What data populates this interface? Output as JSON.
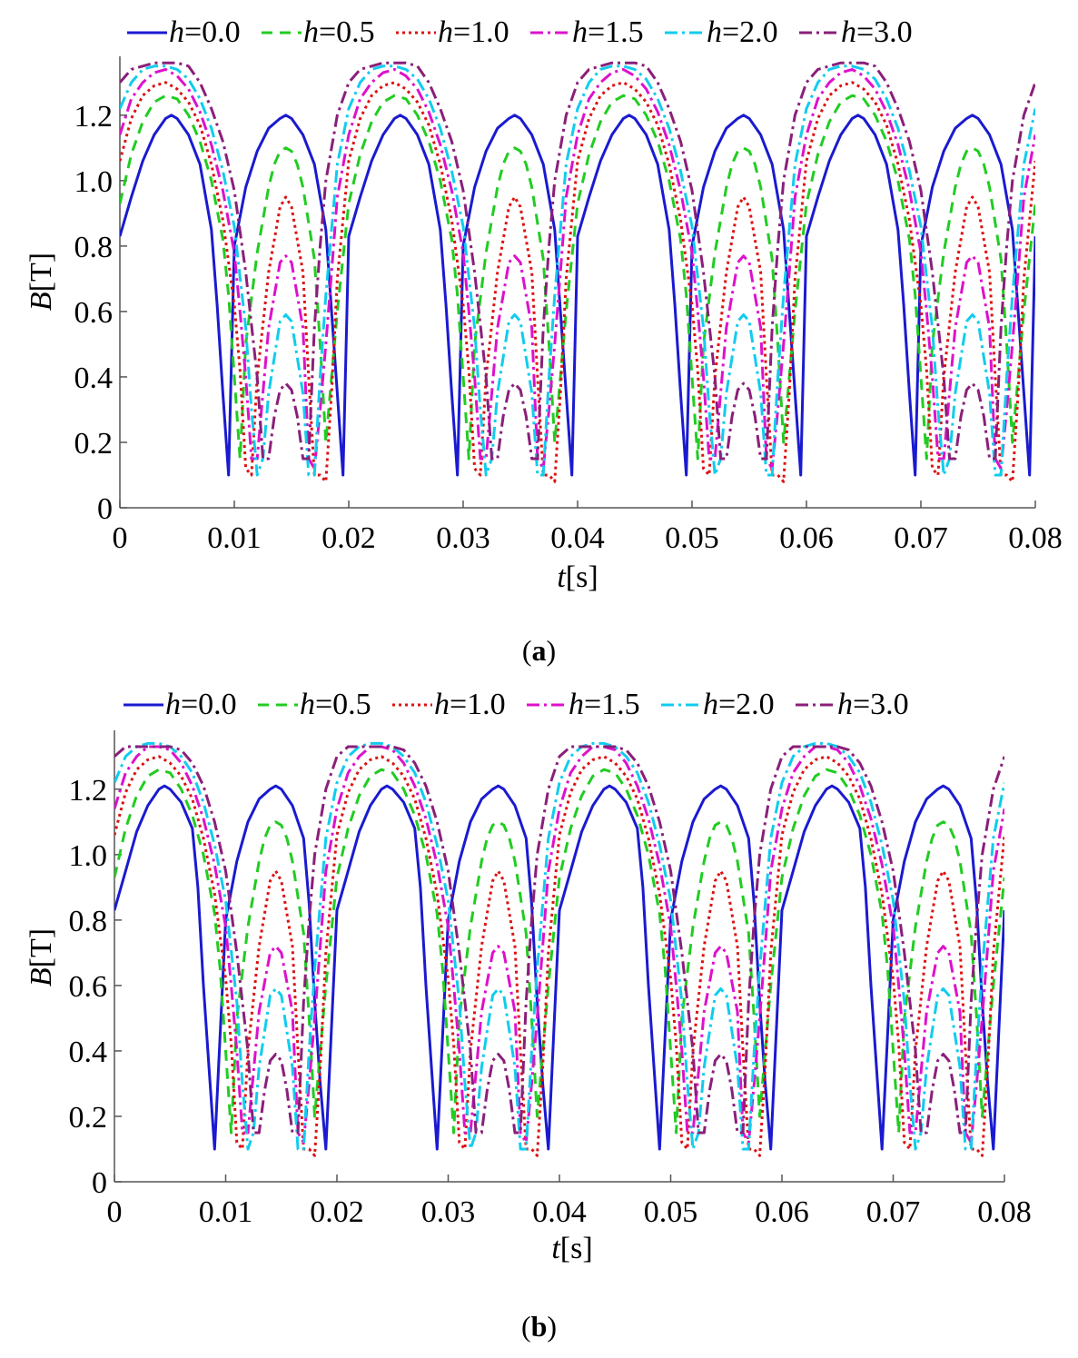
{
  "chart_data": [
    {
      "panel_id": "a",
      "type": "line",
      "caption": "a",
      "xlabel_var": "t",
      "xlabel_unit": "[s]",
      "ylabel_var": "B",
      "ylabel_unit": "[T]",
      "xlim": [
        0,
        0.08
      ],
      "ylim": [
        0,
        1.38
      ],
      "xticks": [
        {
          "value": 0,
          "label": "0"
        },
        {
          "value": 0.01,
          "label": "0.01"
        },
        {
          "value": 0.02,
          "label": "0.02"
        },
        {
          "value": 0.03,
          "label": "0.03"
        },
        {
          "value": 0.04,
          "label": "0.04"
        },
        {
          "value": 0.05,
          "label": "0.05"
        },
        {
          "value": 0.06,
          "label": "0.06"
        },
        {
          "value": 0.07,
          "label": "0.07"
        },
        {
          "value": 0.08,
          "label": "0.08"
        }
      ],
      "yticks": [
        {
          "value": 0,
          "label": "0"
        },
        {
          "value": 0.2,
          "label": "0.2"
        },
        {
          "value": 0.4,
          "label": "0.4"
        },
        {
          "value": 0.6,
          "label": "0.6"
        },
        {
          "value": 0.8,
          "label": "0.8"
        },
        {
          "value": 1.0,
          "label": "1.0"
        },
        {
          "value": 1.2,
          "label": "1.2"
        }
      ],
      "series": [
        {
          "name": "h=0.0",
          "var": "h",
          "value_label": "=0.0",
          "color": "#1a1ad0",
          "dash": "",
          "width": 3,
          "x": [
            0.0,
            0.001,
            0.002,
            0.003,
            0.004,
            0.0045,
            0.005,
            0.006,
            0.007,
            0.008,
            0.0085,
            0.009,
            0.0095,
            0.01,
            0.011,
            0.012,
            0.013,
            0.014,
            0.0145,
            0.015,
            0.016,
            0.017,
            0.018,
            0.0185,
            0.019,
            0.0195,
            0.02
          ],
          "y": [
            0.83,
            0.95,
            1.06,
            1.14,
            1.19,
            1.2,
            1.19,
            1.14,
            1.05,
            0.85,
            0.62,
            0.35,
            0.1,
            0.8,
            0.98,
            1.09,
            1.16,
            1.19,
            1.2,
            1.19,
            1.14,
            1.05,
            0.85,
            0.6,
            0.35,
            0.1,
            0.83
          ]
        },
        {
          "name": "h=0.5",
          "var": "h",
          "value_label": "=0.5",
          "color": "#22cc22",
          "dash": "12,8",
          "width": 3,
          "x": [
            0.0,
            0.001,
            0.002,
            0.003,
            0.004,
            0.005,
            0.006,
            0.007,
            0.008,
            0.009,
            0.0095,
            0.01,
            0.0105,
            0.011,
            0.012,
            0.013,
            0.0135,
            0.014,
            0.0145,
            0.015,
            0.0155,
            0.016,
            0.017,
            0.0175,
            0.018,
            0.019,
            0.02
          ],
          "y": [
            0.93,
            1.08,
            1.18,
            1.24,
            1.26,
            1.25,
            1.2,
            1.12,
            1.0,
            0.82,
            0.65,
            0.4,
            0.15,
            0.5,
            0.78,
            0.98,
            1.05,
            1.09,
            1.1,
            1.09,
            1.05,
            0.98,
            0.76,
            0.5,
            0.2,
            0.6,
            0.93
          ]
        },
        {
          "name": "h=1.0",
          "var": "h",
          "value_label": "=1.0",
          "color": "#dd1111",
          "dash": "3,4",
          "width": 3,
          "x": [
            0.0,
            0.001,
            0.002,
            0.003,
            0.004,
            0.005,
            0.006,
            0.007,
            0.008,
            0.009,
            0.01,
            0.0105,
            0.011,
            0.0115,
            0.012,
            0.013,
            0.014,
            0.0145,
            0.015,
            0.016,
            0.0165,
            0.017,
            0.0175,
            0.018,
            0.0185,
            0.019,
            0.02
          ],
          "y": [
            1.06,
            1.19,
            1.26,
            1.29,
            1.3,
            1.28,
            1.24,
            1.17,
            1.05,
            0.88,
            0.62,
            0.42,
            0.12,
            0.1,
            0.4,
            0.72,
            0.92,
            0.95,
            0.92,
            0.72,
            0.4,
            0.1,
            0.1,
            0.08,
            0.35,
            0.7,
            1.06
          ]
        },
        {
          "name": "h=1.5",
          "var": "h",
          "value_label": "=1.5",
          "color": "#dd11cc",
          "dash": "14,5,3,5",
          "width": 3,
          "x": [
            0.0,
            0.001,
            0.002,
            0.003,
            0.004,
            0.005,
            0.006,
            0.007,
            0.008,
            0.009,
            0.01,
            0.0105,
            0.011,
            0.0115,
            0.012,
            0.013,
            0.014,
            0.0145,
            0.015,
            0.016,
            0.0165,
            0.017,
            0.0175,
            0.018,
            0.0185,
            0.019,
            0.02
          ],
          "y": [
            1.14,
            1.25,
            1.3,
            1.33,
            1.34,
            1.32,
            1.28,
            1.21,
            1.11,
            0.97,
            0.78,
            0.6,
            0.4,
            0.15,
            0.15,
            0.55,
            0.75,
            0.77,
            0.75,
            0.55,
            0.15,
            0.12,
            0.3,
            0.5,
            0.72,
            0.95,
            1.14
          ]
        },
        {
          "name": "h=2.0",
          "var": "h",
          "value_label": "=2.0",
          "color": "#11ccee",
          "dash": "14,5,3,5",
          "width": 3,
          "x": [
            0.0,
            0.001,
            0.002,
            0.003,
            0.004,
            0.005,
            0.006,
            0.007,
            0.008,
            0.009,
            0.01,
            0.011,
            0.0115,
            0.012,
            0.0125,
            0.013,
            0.014,
            0.0145,
            0.015,
            0.016,
            0.0165,
            0.017,
            0.0175,
            0.018,
            0.0185,
            0.019,
            0.02
          ],
          "y": [
            1.22,
            1.3,
            1.34,
            1.35,
            1.35,
            1.34,
            1.31,
            1.25,
            1.16,
            1.03,
            0.86,
            0.55,
            0.3,
            0.1,
            0.15,
            0.35,
            0.57,
            0.59,
            0.57,
            0.35,
            0.1,
            0.1,
            0.4,
            0.65,
            0.85,
            1.05,
            1.22
          ]
        },
        {
          "name": "h=3.0",
          "var": "h",
          "value_label": "=3.0",
          "color": "#8a1f7a",
          "dash": "14,5,3,5",
          "width": 3,
          "x": [
            0.0,
            0.001,
            0.002,
            0.003,
            0.004,
            0.005,
            0.006,
            0.007,
            0.008,
            0.009,
            0.01,
            0.011,
            0.012,
            0.0125,
            0.013,
            0.0135,
            0.014,
            0.0145,
            0.015,
            0.0155,
            0.016,
            0.0165,
            0.017,
            0.0175,
            0.018,
            0.019,
            0.02
          ],
          "y": [
            1.3,
            1.34,
            1.35,
            1.36,
            1.36,
            1.36,
            1.35,
            1.3,
            1.22,
            1.12,
            0.97,
            0.72,
            0.4,
            0.15,
            0.15,
            0.28,
            0.36,
            0.38,
            0.36,
            0.28,
            0.15,
            0.15,
            0.55,
            0.8,
            1.0,
            1.2,
            1.3
          ]
        }
      ]
    },
    {
      "panel_id": "b",
      "type": "line",
      "caption": "b",
      "xlabel_var": "t",
      "xlabel_unit": "[s]",
      "ylabel_var": "B",
      "ylabel_unit": "[T]",
      "xlim": [
        0,
        0.08
      ],
      "ylim": [
        0,
        1.38
      ],
      "xticks": [
        {
          "value": 0,
          "label": "0"
        },
        {
          "value": 0.01,
          "label": "0.01"
        },
        {
          "value": 0.02,
          "label": "0.02"
        },
        {
          "value": 0.03,
          "label": "0.03"
        },
        {
          "value": 0.04,
          "label": "0.04"
        },
        {
          "value": 0.05,
          "label": "0.05"
        },
        {
          "value": 0.06,
          "label": "0.06"
        },
        {
          "value": 0.07,
          "label": "0.07"
        },
        {
          "value": 0.08,
          "label": "0.08"
        }
      ],
      "yticks": [
        {
          "value": 0,
          "label": "0"
        },
        {
          "value": 0.2,
          "label": "0.2"
        },
        {
          "value": 0.4,
          "label": "0.4"
        },
        {
          "value": 0.6,
          "label": "0.6"
        },
        {
          "value": 0.8,
          "label": "0.8"
        },
        {
          "value": 1.0,
          "label": "1.0"
        },
        {
          "value": 1.2,
          "label": "1.2"
        }
      ],
      "series": [
        {
          "name": "h=0.0",
          "var": "h",
          "value_label": "=0.0",
          "color": "#1a1ad0",
          "dash": "",
          "width": 3,
          "x": [
            0.0,
            0.001,
            0.002,
            0.003,
            0.004,
            0.0045,
            0.005,
            0.006,
            0.007,
            0.0075,
            0.008,
            0.0085,
            0.009,
            0.01,
            0.011,
            0.012,
            0.013,
            0.014,
            0.0145,
            0.015,
            0.016,
            0.017,
            0.0175,
            0.018,
            0.0185,
            0.019,
            0.02
          ],
          "y": [
            0.83,
            0.95,
            1.07,
            1.15,
            1.2,
            1.21,
            1.2,
            1.16,
            1.08,
            0.9,
            0.6,
            0.35,
            0.1,
            0.8,
            0.98,
            1.1,
            1.17,
            1.2,
            1.21,
            1.2,
            1.15,
            1.05,
            0.85,
            0.55,
            0.3,
            0.1,
            0.83
          ]
        },
        {
          "name": "h=0.5",
          "var": "h",
          "value_label": "=0.5",
          "color": "#22cc22",
          "dash": "12,8",
          "width": 3,
          "x": [
            0.0,
            0.001,
            0.002,
            0.003,
            0.004,
            0.005,
            0.006,
            0.007,
            0.008,
            0.009,
            0.0095,
            0.01,
            0.0105,
            0.011,
            0.012,
            0.013,
            0.0135,
            0.014,
            0.0145,
            0.015,
            0.0155,
            0.016,
            0.017,
            0.0175,
            0.018,
            0.019,
            0.02
          ],
          "y": [
            0.93,
            1.08,
            1.18,
            1.24,
            1.26,
            1.25,
            1.2,
            1.12,
            1.0,
            0.82,
            0.65,
            0.4,
            0.15,
            0.5,
            0.78,
            0.98,
            1.05,
            1.09,
            1.1,
            1.09,
            1.05,
            0.98,
            0.76,
            0.5,
            0.2,
            0.6,
            0.93
          ]
        },
        {
          "name": "h=1.0",
          "var": "h",
          "value_label": "=1.0",
          "color": "#dd1111",
          "dash": "3,4",
          "width": 3,
          "x": [
            0.0,
            0.001,
            0.002,
            0.003,
            0.004,
            0.005,
            0.006,
            0.007,
            0.008,
            0.009,
            0.01,
            0.0105,
            0.011,
            0.0115,
            0.012,
            0.013,
            0.014,
            0.0145,
            0.015,
            0.016,
            0.0165,
            0.017,
            0.0175,
            0.018,
            0.0185,
            0.019,
            0.02
          ],
          "y": [
            1.06,
            1.19,
            1.26,
            1.29,
            1.3,
            1.28,
            1.24,
            1.17,
            1.05,
            0.88,
            0.62,
            0.42,
            0.12,
            0.1,
            0.4,
            0.72,
            0.92,
            0.95,
            0.92,
            0.72,
            0.4,
            0.1,
            0.1,
            0.08,
            0.35,
            0.7,
            1.06
          ]
        },
        {
          "name": "h=1.5",
          "var": "h",
          "value_label": "=1.5",
          "color": "#dd11cc",
          "dash": "14,5,3,5",
          "width": 3,
          "x": [
            0.0,
            0.001,
            0.002,
            0.003,
            0.004,
            0.005,
            0.006,
            0.007,
            0.008,
            0.009,
            0.01,
            0.0105,
            0.011,
            0.0115,
            0.012,
            0.013,
            0.014,
            0.0145,
            0.015,
            0.016,
            0.0165,
            0.017,
            0.0175,
            0.018,
            0.0185,
            0.019,
            0.02
          ],
          "y": [
            1.14,
            1.25,
            1.3,
            1.33,
            1.33,
            1.32,
            1.28,
            1.21,
            1.11,
            0.97,
            0.78,
            0.6,
            0.4,
            0.15,
            0.15,
            0.52,
            0.7,
            0.72,
            0.7,
            0.52,
            0.15,
            0.12,
            0.3,
            0.5,
            0.72,
            0.95,
            1.14
          ]
        },
        {
          "name": "h=2.0",
          "var": "h",
          "value_label": "=2.0",
          "color": "#11ccee",
          "dash": "14,5,3,5",
          "width": 3,
          "x": [
            0.0,
            0.001,
            0.002,
            0.003,
            0.004,
            0.005,
            0.006,
            0.007,
            0.008,
            0.009,
            0.01,
            0.011,
            0.0115,
            0.012,
            0.0125,
            0.013,
            0.014,
            0.0145,
            0.015,
            0.016,
            0.0165,
            0.017,
            0.0175,
            0.018,
            0.0185,
            0.019,
            0.02
          ],
          "y": [
            1.22,
            1.3,
            1.33,
            1.34,
            1.34,
            1.33,
            1.3,
            1.25,
            1.16,
            1.03,
            0.86,
            0.55,
            0.3,
            0.1,
            0.15,
            0.35,
            0.57,
            0.59,
            0.57,
            0.35,
            0.1,
            0.1,
            0.4,
            0.65,
            0.85,
            1.05,
            1.22
          ]
        },
        {
          "name": "h=3.0",
          "var": "h",
          "value_label": "=3.0",
          "color": "#8a1f7a",
          "dash": "14,5,3,5",
          "width": 3,
          "x": [
            0.0,
            0.001,
            0.002,
            0.003,
            0.004,
            0.005,
            0.006,
            0.007,
            0.008,
            0.009,
            0.01,
            0.011,
            0.012,
            0.0125,
            0.013,
            0.0135,
            0.014,
            0.0145,
            0.015,
            0.0155,
            0.016,
            0.0165,
            0.017,
            0.0175,
            0.018,
            0.019,
            0.02
          ],
          "y": [
            1.3,
            1.33,
            1.33,
            1.33,
            1.33,
            1.33,
            1.32,
            1.28,
            1.21,
            1.1,
            0.95,
            0.7,
            0.4,
            0.15,
            0.15,
            0.28,
            0.37,
            0.39,
            0.37,
            0.28,
            0.15,
            0.15,
            0.55,
            0.8,
            1.0,
            1.2,
            1.3
          ]
        }
      ]
    }
  ]
}
